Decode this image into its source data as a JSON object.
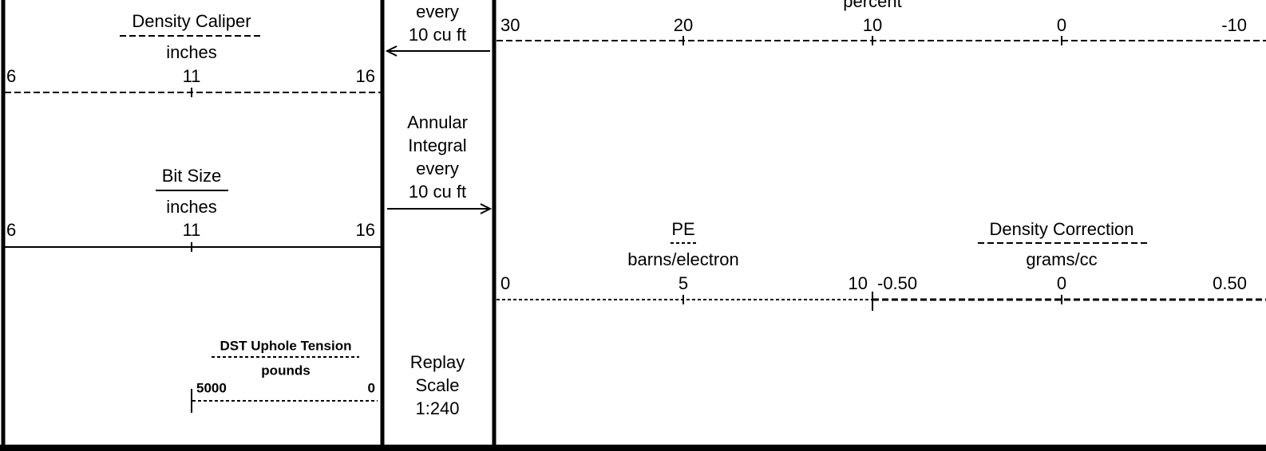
{
  "left_track": {
    "density_caliper": {
      "title": "Density Caliper",
      "unit": "inches",
      "scale": [
        "6",
        "11",
        "16"
      ]
    },
    "bit_size": {
      "title": "Bit Size",
      "unit": "inches",
      "scale": [
        "6",
        "11",
        "16"
      ]
    },
    "dst_uphole_tension": {
      "title": "DST Uphole Tension",
      "unit": "pounds",
      "scale": [
        "5000",
        "0"
      ]
    }
  },
  "depth_track": {
    "top_note": [
      "every",
      "10 cu ft"
    ],
    "annular_integral": [
      "Annular",
      "Integral",
      "every",
      "10 cu ft"
    ],
    "replay_scale": [
      "Replay",
      "Scale",
      "1:240"
    ]
  },
  "right_track": {
    "porosity": {
      "unit": "percent",
      "scale": [
        "30",
        "20",
        "10",
        "0",
        "-10"
      ]
    },
    "pe": {
      "title": "PE",
      "unit": "barns/electron",
      "scale": [
        "0",
        "5",
        "10"
      ]
    },
    "density_correction": {
      "title": "Density Correction",
      "unit": "grams/cc",
      "scale": [
        "-0.50",
        "0",
        "0.50"
      ]
    }
  }
}
